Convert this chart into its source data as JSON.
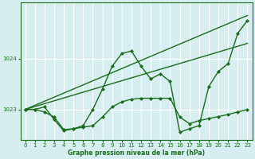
{
  "xlabel": "Graphe pression niveau de la mer (hPa)",
  "background_color": "#d6eef0",
  "grid_color": "#ffffff",
  "line_color": "#1a6b1a",
  "xlim": [
    -0.5,
    23.5
  ],
  "ylim": [
    1022.4,
    1025.1
  ],
  "yticks": [
    1023,
    1024
  ],
  "xticks": [
    0,
    1,
    2,
    3,
    4,
    5,
    6,
    7,
    8,
    9,
    10,
    11,
    12,
    13,
    14,
    15,
    16,
    17,
    18,
    19,
    20,
    21,
    22,
    23
  ],
  "series": [
    {
      "x": [
        0,
        1,
        2,
        3,
        4,
        5,
        6,
        7,
        8,
        9,
        10,
        11,
        12,
        13,
        14,
        15,
        16,
        17,
        18,
        19,
        20,
        21,
        22,
        23
      ],
      "y": [
        1023.0,
        1023.0,
        1022.95,
        1022.85,
        1022.6,
        1022.62,
        1022.65,
        1022.68,
        1022.85,
        1023.05,
        1023.15,
        1023.2,
        1023.22,
        1023.22,
        1023.22,
        1023.22,
        1022.85,
        1022.72,
        1022.78,
        1022.82,
        1022.86,
        1022.9,
        1022.95,
        1023.0
      ],
      "marker": "D",
      "markersize": 2.0,
      "lw": 1.0
    },
    {
      "x": [
        0,
        1,
        2,
        3,
        4,
        5,
        6,
        7,
        8,
        9,
        10,
        11,
        12,
        13,
        14,
        15,
        16,
        17,
        18,
        19,
        20,
        21,
        22,
        23
      ],
      "y": [
        1023.0,
        1023.0,
        1023.05,
        1022.8,
        1022.58,
        1022.62,
        1022.68,
        1023.0,
        1023.4,
        1023.85,
        1024.1,
        1024.15,
        1023.85,
        1023.6,
        1023.7,
        1023.55,
        1022.55,
        1022.62,
        1022.68,
        1023.45,
        1023.75,
        1023.9,
        1024.5,
        1024.75
      ],
      "marker": "D",
      "markersize": 2.0,
      "lw": 1.0
    },
    {
      "x": [
        0,
        23
      ],
      "y": [
        1023.0,
        1024.85
      ],
      "marker": null,
      "markersize": 0,
      "lw": 1.0
    },
    {
      "x": [
        0,
        23
      ],
      "y": [
        1023.0,
        1024.3
      ],
      "marker": null,
      "markersize": 0,
      "lw": 1.0
    }
  ]
}
